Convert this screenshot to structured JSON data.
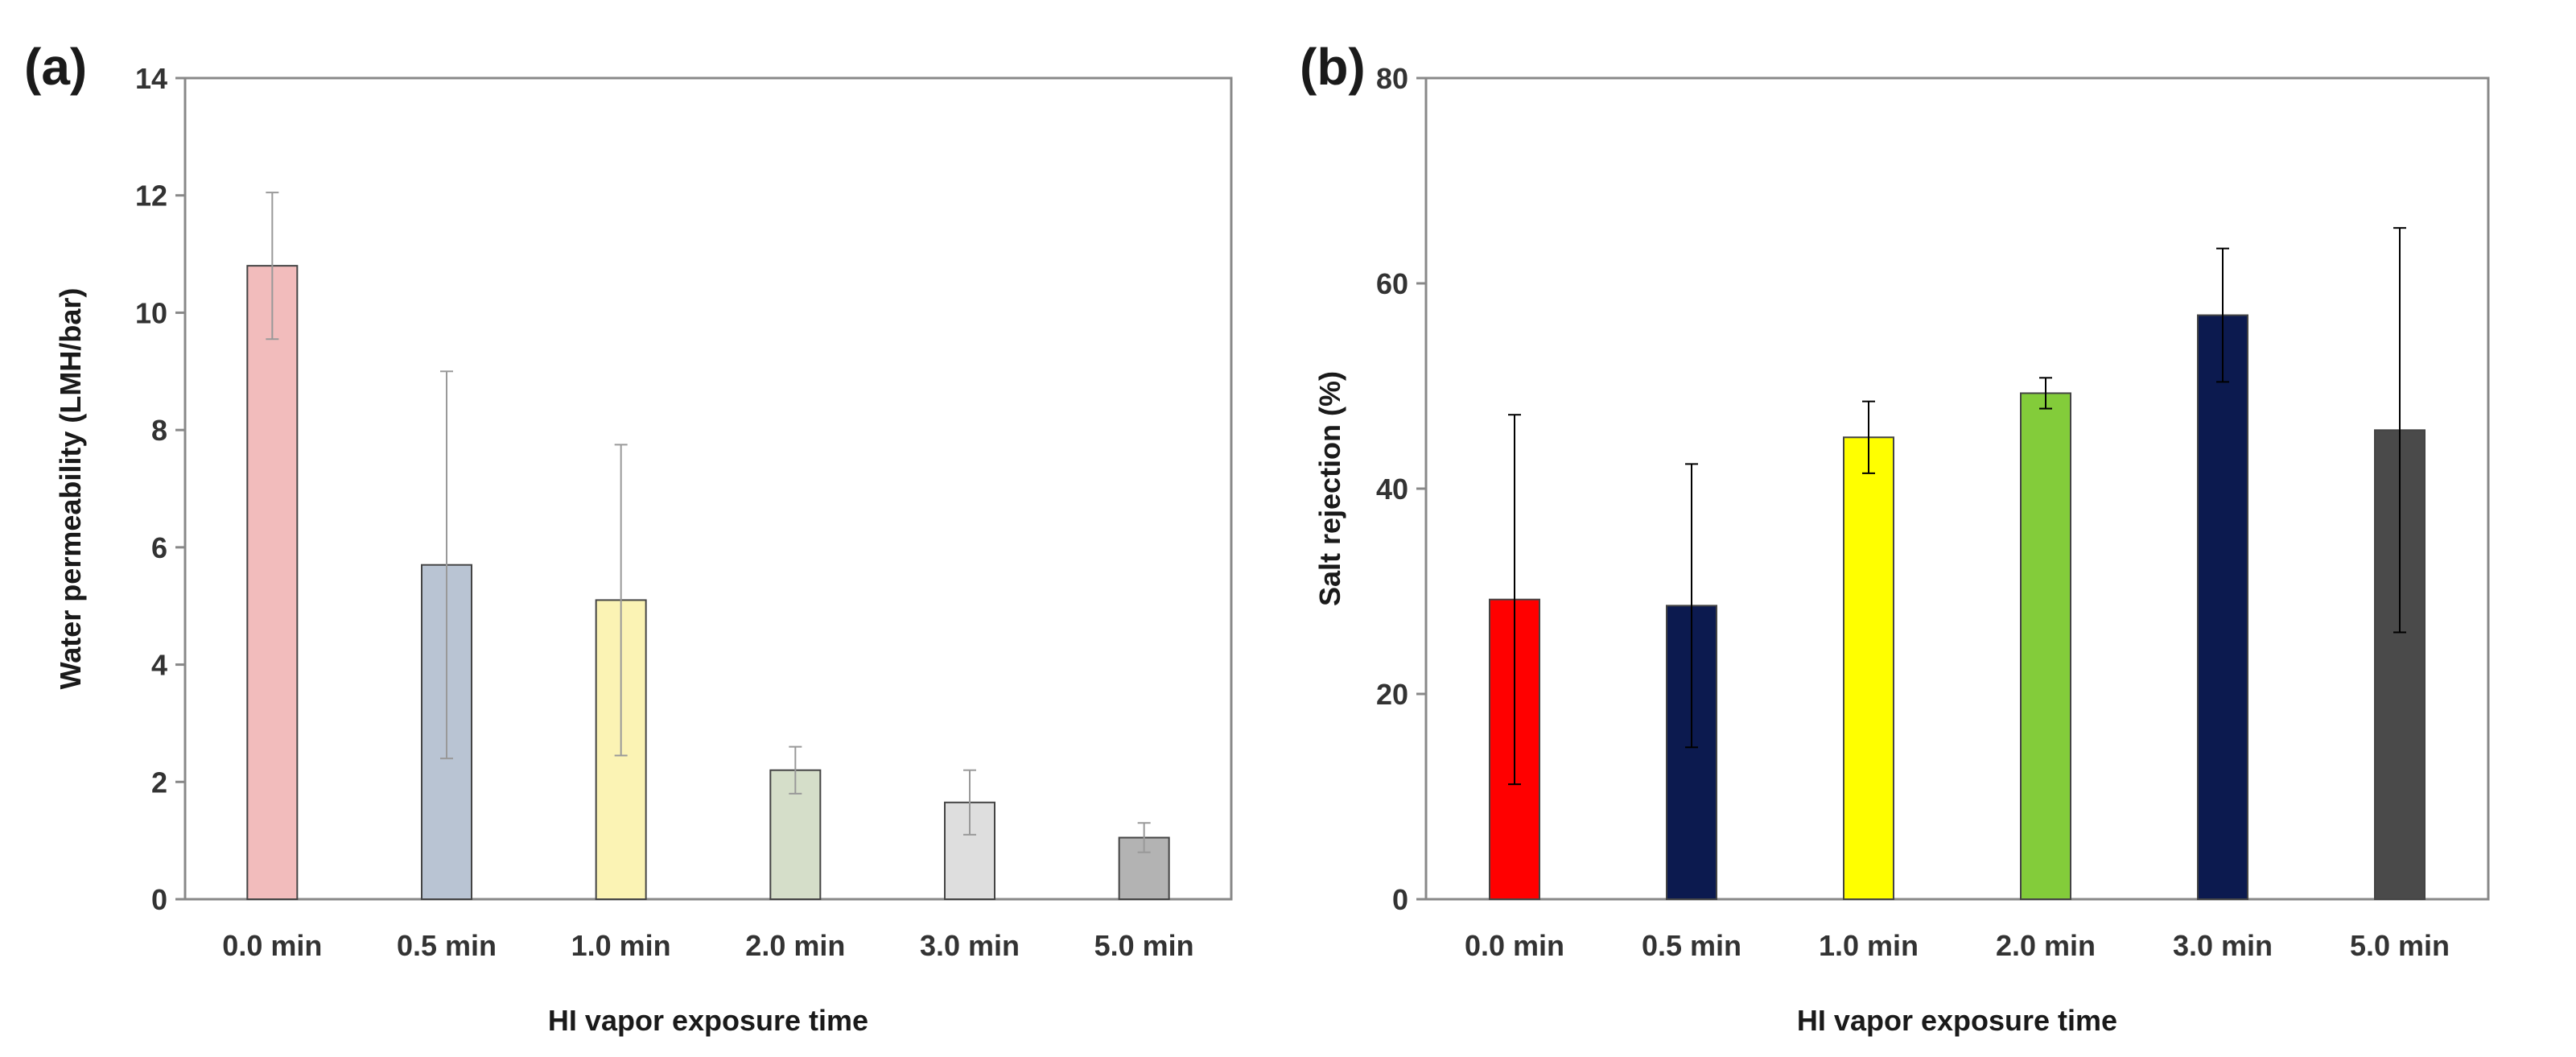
{
  "chart_data": [
    {
      "type": "bar",
      "panel_label": "(a)",
      "title": "",
      "xlabel": "HI vapor exposure time",
      "ylabel": "Water permeability (LMH/bar)",
      "categories": [
        "0.0 min",
        "0.5 min",
        "1.0 min",
        "2.0 min",
        "3.0 min",
        "5.0 min"
      ],
      "values": [
        10.8,
        5.7,
        5.1,
        2.2,
        1.65,
        1.05
      ],
      "errors": [
        1.25,
        3.3,
        2.65,
        0.4,
        0.55,
        0.25
      ],
      "colors": [
        "#f2bcbc",
        "#b9c4d3",
        "#fbf3b4",
        "#d5dec9",
        "#dedede",
        "#b3b3b3"
      ],
      "error_color": "#999999",
      "ylim": [
        0,
        14
      ],
      "yticks": [
        "0",
        "2",
        "4",
        "6",
        "8",
        "10",
        "12",
        "14"
      ],
      "grid": false
    },
    {
      "type": "bar",
      "panel_label": "(b)",
      "title": "",
      "xlabel": "HI vapor exposure time",
      "ylabel": "Salt rejection (%)",
      "categories": [
        "0.0 min",
        "0.5 min",
        "1.0 min",
        "2.0 min",
        "3.0 min",
        "5.0 min"
      ],
      "values": [
        29.2,
        28.6,
        45.0,
        49.3,
        56.9,
        45.7
      ],
      "errors": [
        18.0,
        13.8,
        3.5,
        1.5,
        6.5,
        19.7
      ],
      "colors": [
        "#ff0000",
        "#0c1a4f",
        "#ffff00",
        "#83cc3a",
        "#0c1a4f",
        "#4a4a4a"
      ],
      "error_color": "#000000",
      "ylim": [
        0,
        80
      ],
      "yticks": [
        "0",
        "20",
        "40",
        "60",
        "80"
      ],
      "grid": false
    }
  ]
}
